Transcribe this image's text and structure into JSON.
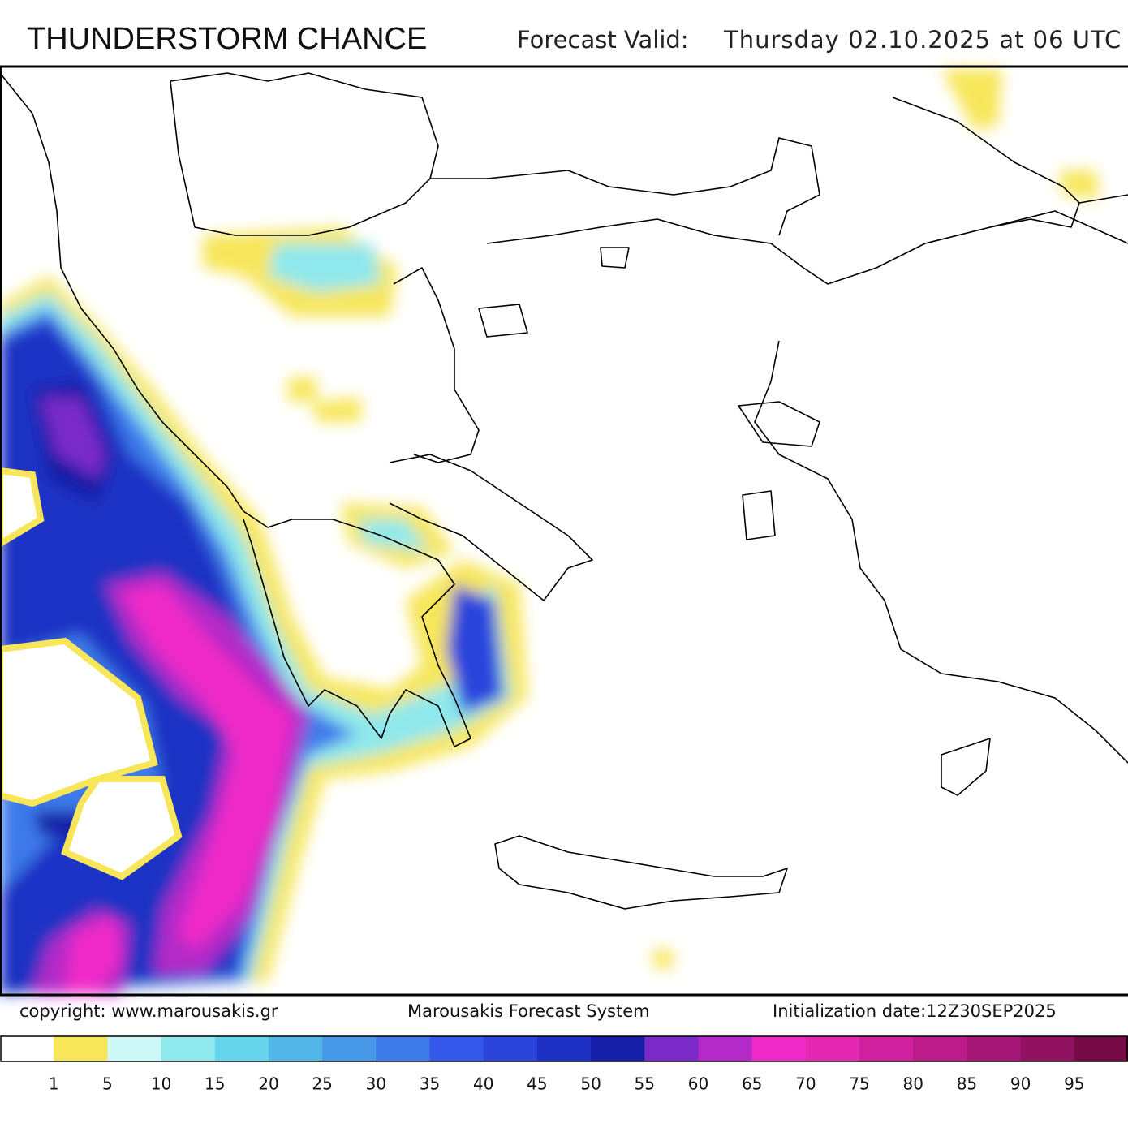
{
  "header": {
    "title": "THUNDERSTORM CHANCE",
    "valid_label": "Forecast Valid:",
    "valid_date": "Thursday 02.10.2025 at 06 UTC"
  },
  "footer": {
    "copyright": "copyright: www.marousakis.gr",
    "system": "Marousakis Forecast System",
    "init": "Initialization date:12Z30SEP2025"
  },
  "legend": {
    "ticks": [
      1,
      5,
      10,
      15,
      20,
      25,
      30,
      35,
      40,
      45,
      50,
      55,
      60,
      65,
      70,
      75,
      80,
      85,
      90,
      95
    ],
    "colors": [
      "#ffffff",
      "#f7e65a",
      "#cdf7f7",
      "#8fe8ec",
      "#66d4ea",
      "#52b6e8",
      "#4898e8",
      "#3e7aea",
      "#3458ea",
      "#2a44dc",
      "#1e30c4",
      "#141ea6",
      "#7a2ac8",
      "#b42ac8",
      "#f02ac8",
      "#e428b4",
      "#d0209e",
      "#bc1c8a",
      "#a61676",
      "#921262",
      "#760a44"
    ]
  }
}
